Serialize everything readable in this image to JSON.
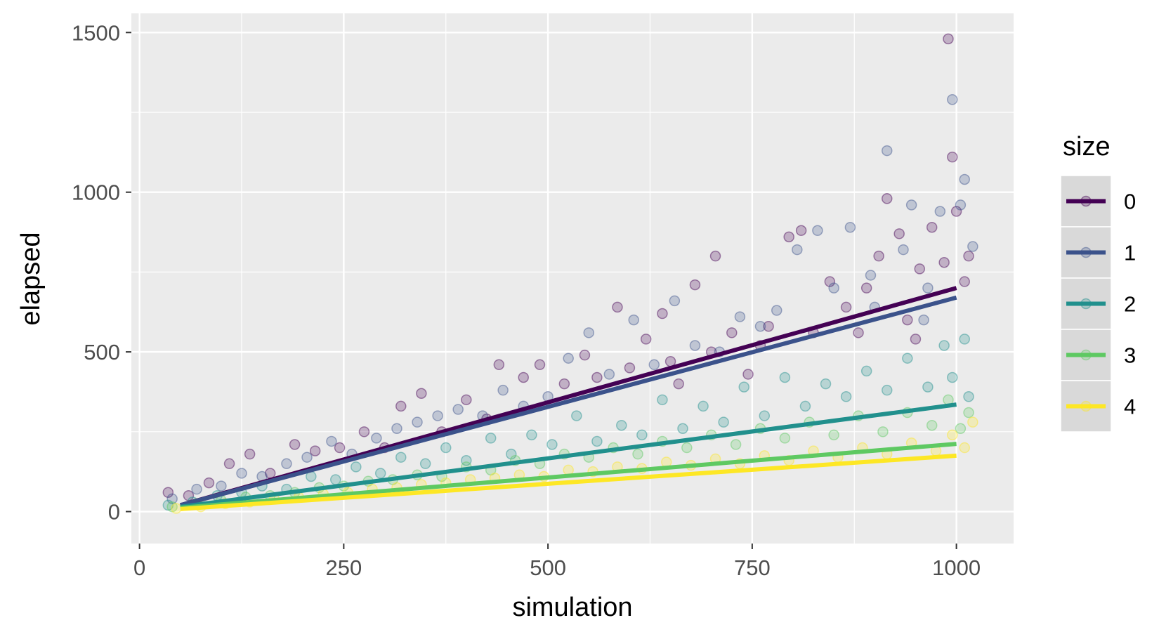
{
  "chart_data": {
    "type": "scatter",
    "title": "",
    "xlabel": "simulation",
    "ylabel": "elapsed",
    "xlim": [
      -10,
      1070
    ],
    "ylim": [
      -100,
      1560
    ],
    "x_ticks": [
      0,
      250,
      500,
      750,
      1000
    ],
    "y_ticks": [
      0,
      500,
      1000,
      1500
    ],
    "grid": true,
    "legend": {
      "title": "size",
      "position": "right"
    },
    "series": [
      {
        "name": "0",
        "color": "#440154",
        "trend": {
          "x": [
            50,
            1000
          ],
          "y": [
            20,
            700
          ]
        },
        "points": [
          {
            "x": 35,
            "y": 60
          },
          {
            "x": 60,
            "y": 50
          },
          {
            "x": 85,
            "y": 90
          },
          {
            "x": 110,
            "y": 150
          },
          {
            "x": 135,
            "y": 180
          },
          {
            "x": 160,
            "y": 120
          },
          {
            "x": 190,
            "y": 210
          },
          {
            "x": 215,
            "y": 190
          },
          {
            "x": 245,
            "y": 200
          },
          {
            "x": 275,
            "y": 250
          },
          {
            "x": 300,
            "y": 200
          },
          {
            "x": 320,
            "y": 330
          },
          {
            "x": 345,
            "y": 370
          },
          {
            "x": 370,
            "y": 250
          },
          {
            "x": 400,
            "y": 350
          },
          {
            "x": 425,
            "y": 290
          },
          {
            "x": 440,
            "y": 460
          },
          {
            "x": 470,
            "y": 420
          },
          {
            "x": 490,
            "y": 460
          },
          {
            "x": 520,
            "y": 400
          },
          {
            "x": 545,
            "y": 490
          },
          {
            "x": 560,
            "y": 420
          },
          {
            "x": 585,
            "y": 640
          },
          {
            "x": 600,
            "y": 450
          },
          {
            "x": 620,
            "y": 540
          },
          {
            "x": 640,
            "y": 620
          },
          {
            "x": 660,
            "y": 400
          },
          {
            "x": 680,
            "y": 710
          },
          {
            "x": 700,
            "y": 500
          },
          {
            "x": 705,
            "y": 800
          },
          {
            "x": 725,
            "y": 560
          },
          {
            "x": 745,
            "y": 430
          },
          {
            "x": 770,
            "y": 580
          },
          {
            "x": 795,
            "y": 860
          },
          {
            "x": 810,
            "y": 880
          },
          {
            "x": 825,
            "y": 560
          },
          {
            "x": 845,
            "y": 720
          },
          {
            "x": 865,
            "y": 640
          },
          {
            "x": 890,
            "y": 700
          },
          {
            "x": 905,
            "y": 800
          },
          {
            "x": 915,
            "y": 980
          },
          {
            "x": 930,
            "y": 870
          },
          {
            "x": 940,
            "y": 600
          },
          {
            "x": 955,
            "y": 760
          },
          {
            "x": 970,
            "y": 890
          },
          {
            "x": 985,
            "y": 780
          },
          {
            "x": 990,
            "y": 1480
          },
          {
            "x": 995,
            "y": 1110
          },
          {
            "x": 1000,
            "y": 940
          },
          {
            "x": 1010,
            "y": 720
          },
          {
            "x": 1015,
            "y": 800
          },
          {
            "x": 950,
            "y": 540
          },
          {
            "x": 880,
            "y": 560
          },
          {
            "x": 760,
            "y": 520
          },
          {
            "x": 650,
            "y": 470
          }
        ]
      },
      {
        "name": "1",
        "color": "#3b528b",
        "trend": {
          "x": [
            50,
            1000
          ],
          "y": [
            20,
            670
          ]
        },
        "points": [
          {
            "x": 40,
            "y": 40
          },
          {
            "x": 70,
            "y": 70
          },
          {
            "x": 100,
            "y": 80
          },
          {
            "x": 125,
            "y": 120
          },
          {
            "x": 150,
            "y": 110
          },
          {
            "x": 180,
            "y": 150
          },
          {
            "x": 205,
            "y": 170
          },
          {
            "x": 235,
            "y": 220
          },
          {
            "x": 260,
            "y": 180
          },
          {
            "x": 290,
            "y": 230
          },
          {
            "x": 315,
            "y": 260
          },
          {
            "x": 340,
            "y": 280
          },
          {
            "x": 365,
            "y": 300
          },
          {
            "x": 390,
            "y": 320
          },
          {
            "x": 420,
            "y": 300
          },
          {
            "x": 445,
            "y": 380
          },
          {
            "x": 470,
            "y": 330
          },
          {
            "x": 500,
            "y": 360
          },
          {
            "x": 525,
            "y": 480
          },
          {
            "x": 550,
            "y": 560
          },
          {
            "x": 575,
            "y": 430
          },
          {
            "x": 605,
            "y": 600
          },
          {
            "x": 630,
            "y": 460
          },
          {
            "x": 655,
            "y": 660
          },
          {
            "x": 680,
            "y": 520
          },
          {
            "x": 710,
            "y": 500
          },
          {
            "x": 735,
            "y": 610
          },
          {
            "x": 760,
            "y": 580
          },
          {
            "x": 780,
            "y": 630
          },
          {
            "x": 805,
            "y": 820
          },
          {
            "x": 830,
            "y": 880
          },
          {
            "x": 850,
            "y": 700
          },
          {
            "x": 870,
            "y": 890
          },
          {
            "x": 895,
            "y": 740
          },
          {
            "x": 915,
            "y": 1130
          },
          {
            "x": 935,
            "y": 820
          },
          {
            "x": 945,
            "y": 960
          },
          {
            "x": 965,
            "y": 700
          },
          {
            "x": 980,
            "y": 940
          },
          {
            "x": 995,
            "y": 1290
          },
          {
            "x": 1005,
            "y": 960
          },
          {
            "x": 1010,
            "y": 1040
          },
          {
            "x": 1020,
            "y": 830
          },
          {
            "x": 960,
            "y": 600
          },
          {
            "x": 900,
            "y": 640
          }
        ]
      },
      {
        "name": "2",
        "color": "#21908d",
        "trend": {
          "x": [
            50,
            1000
          ],
          "y": [
            15,
            335
          ]
        },
        "points": [
          {
            "x": 35,
            "y": 20
          },
          {
            "x": 65,
            "y": 30
          },
          {
            "x": 95,
            "y": 50
          },
          {
            "x": 125,
            "y": 60
          },
          {
            "x": 150,
            "y": 80
          },
          {
            "x": 180,
            "y": 70
          },
          {
            "x": 210,
            "y": 110
          },
          {
            "x": 240,
            "y": 100
          },
          {
            "x": 265,
            "y": 140
          },
          {
            "x": 295,
            "y": 120
          },
          {
            "x": 320,
            "y": 170
          },
          {
            "x": 350,
            "y": 150
          },
          {
            "x": 375,
            "y": 200
          },
          {
            "x": 400,
            "y": 160
          },
          {
            "x": 430,
            "y": 230
          },
          {
            "x": 455,
            "y": 180
          },
          {
            "x": 480,
            "y": 240
          },
          {
            "x": 505,
            "y": 210
          },
          {
            "x": 535,
            "y": 300
          },
          {
            "x": 560,
            "y": 220
          },
          {
            "x": 590,
            "y": 270
          },
          {
            "x": 615,
            "y": 240
          },
          {
            "x": 640,
            "y": 350
          },
          {
            "x": 665,
            "y": 260
          },
          {
            "x": 690,
            "y": 330
          },
          {
            "x": 715,
            "y": 280
          },
          {
            "x": 740,
            "y": 390
          },
          {
            "x": 765,
            "y": 300
          },
          {
            "x": 790,
            "y": 420
          },
          {
            "x": 815,
            "y": 330
          },
          {
            "x": 840,
            "y": 400
          },
          {
            "x": 865,
            "y": 360
          },
          {
            "x": 890,
            "y": 440
          },
          {
            "x": 915,
            "y": 380
          },
          {
            "x": 940,
            "y": 480
          },
          {
            "x": 965,
            "y": 390
          },
          {
            "x": 985,
            "y": 520
          },
          {
            "x": 995,
            "y": 420
          },
          {
            "x": 1010,
            "y": 540
          },
          {
            "x": 1015,
            "y": 360
          }
        ]
      },
      {
        "name": "3",
        "color": "#5ec962",
        "trend": {
          "x": [
            50,
            1000
          ],
          "y": [
            12,
            212
          ]
        },
        "points": [
          {
            "x": 40,
            "y": 15
          },
          {
            "x": 70,
            "y": 25
          },
          {
            "x": 100,
            "y": 35
          },
          {
            "x": 130,
            "y": 45
          },
          {
            "x": 160,
            "y": 50
          },
          {
            "x": 190,
            "y": 60
          },
          {
            "x": 220,
            "y": 75
          },
          {
            "x": 250,
            "y": 80
          },
          {
            "x": 280,
            "y": 95
          },
          {
            "x": 310,
            "y": 100
          },
          {
            "x": 340,
            "y": 115
          },
          {
            "x": 370,
            "y": 110
          },
          {
            "x": 400,
            "y": 140
          },
          {
            "x": 430,
            "y": 130
          },
          {
            "x": 460,
            "y": 160
          },
          {
            "x": 490,
            "y": 150
          },
          {
            "x": 520,
            "y": 180
          },
          {
            "x": 550,
            "y": 170
          },
          {
            "x": 580,
            "y": 200
          },
          {
            "x": 610,
            "y": 180
          },
          {
            "x": 640,
            "y": 220
          },
          {
            "x": 670,
            "y": 200
          },
          {
            "x": 700,
            "y": 240
          },
          {
            "x": 730,
            "y": 210
          },
          {
            "x": 760,
            "y": 260
          },
          {
            "x": 790,
            "y": 230
          },
          {
            "x": 820,
            "y": 280
          },
          {
            "x": 850,
            "y": 240
          },
          {
            "x": 880,
            "y": 300
          },
          {
            "x": 910,
            "y": 250
          },
          {
            "x": 940,
            "y": 310
          },
          {
            "x": 970,
            "y": 270
          },
          {
            "x": 990,
            "y": 350
          },
          {
            "x": 1005,
            "y": 260
          },
          {
            "x": 1015,
            "y": 310
          }
        ]
      },
      {
        "name": "4",
        "color": "#fde725",
        "trend": {
          "x": [
            50,
            1000
          ],
          "y": [
            8,
            175
          ]
        },
        "points": [
          {
            "x": 45,
            "y": 10
          },
          {
            "x": 75,
            "y": 15
          },
          {
            "x": 105,
            "y": 25
          },
          {
            "x": 135,
            "y": 30
          },
          {
            "x": 165,
            "y": 40
          },
          {
            "x": 195,
            "y": 45
          },
          {
            "x": 225,
            "y": 55
          },
          {
            "x": 255,
            "y": 60
          },
          {
            "x": 285,
            "y": 70
          },
          {
            "x": 315,
            "y": 75
          },
          {
            "x": 345,
            "y": 85
          },
          {
            "x": 375,
            "y": 90
          },
          {
            "x": 405,
            "y": 100
          },
          {
            "x": 435,
            "y": 105
          },
          {
            "x": 465,
            "y": 115
          },
          {
            "x": 495,
            "y": 110
          },
          {
            "x": 525,
            "y": 130
          },
          {
            "x": 555,
            "y": 125
          },
          {
            "x": 585,
            "y": 140
          },
          {
            "x": 615,
            "y": 135
          },
          {
            "x": 645,
            "y": 155
          },
          {
            "x": 675,
            "y": 145
          },
          {
            "x": 705,
            "y": 165
          },
          {
            "x": 735,
            "y": 150
          },
          {
            "x": 765,
            "y": 175
          },
          {
            "x": 795,
            "y": 160
          },
          {
            "x": 825,
            "y": 190
          },
          {
            "x": 855,
            "y": 170
          },
          {
            "x": 885,
            "y": 200
          },
          {
            "x": 915,
            "y": 180
          },
          {
            "x": 945,
            "y": 215
          },
          {
            "x": 975,
            "y": 190
          },
          {
            "x": 995,
            "y": 240
          },
          {
            "x": 1010,
            "y": 200
          },
          {
            "x": 1020,
            "y": 280
          }
        ]
      }
    ]
  }
}
